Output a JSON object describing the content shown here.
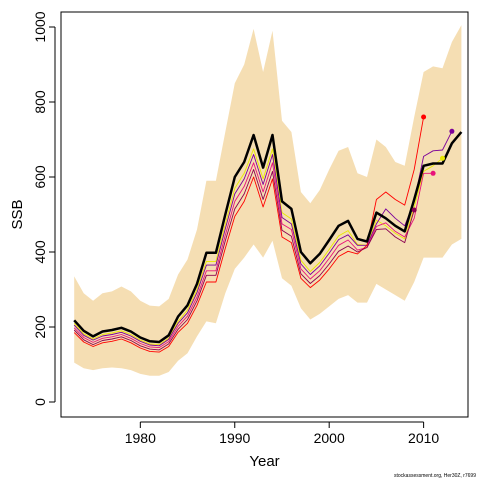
{
  "chart_data": {
    "type": "line",
    "xlabel": "Year",
    "ylabel": "SSB",
    "xlim": [
      1971.6,
      2014.7
    ],
    "ylim": [
      -40,
      1040
    ],
    "x_ticks": [
      1980,
      1990,
      2000,
      2010
    ],
    "y_ticks": [
      0,
      200,
      400,
      600,
      800,
      1000
    ],
    "grid": false,
    "credit": "stockassessment.org, Her30Z, r7699",
    "band": {
      "color": "#f5deb3",
      "x": [
        1973,
        1974,
        1975,
        1976,
        1977,
        1978,
        1979,
        1980,
        1981,
        1982,
        1983,
        1984,
        1985,
        1986,
        1987,
        1988,
        1989,
        1990,
        1991,
        1992,
        1993,
        1994,
        1995,
        1996,
        1997,
        1998,
        1999,
        2000,
        2001,
        2002,
        2003,
        2004,
        2005,
        2006,
        2007,
        2008,
        2009,
        2010,
        2011,
        2012,
        2013,
        2014
      ],
      "upper": [
        335,
        290,
        270,
        290,
        295,
        308,
        295,
        270,
        257,
        255,
        275,
        340,
        380,
        460,
        590,
        590,
        720,
        850,
        900,
        995,
        880,
        990,
        750,
        720,
        560,
        530,
        565,
        620,
        670,
        680,
        610,
        600,
        700,
        680,
        640,
        630,
        760,
        880,
        895,
        890,
        960,
        1005
      ],
      "lower": [
        105,
        90,
        85,
        90,
        92,
        90,
        85,
        75,
        70,
        70,
        80,
        110,
        130,
        175,
        215,
        210,
        290,
        355,
        385,
        420,
        385,
        430,
        330,
        310,
        250,
        220,
        235,
        255,
        275,
        285,
        265,
        265,
        315,
        300,
        285,
        270,
        320,
        385,
        385,
        385,
        420,
        435
      ]
    },
    "series": [
      {
        "color": "#000000",
        "x": [
          1973,
          1974,
          1975,
          1976,
          1977,
          1978,
          1979,
          1980,
          1981,
          1982,
          1983,
          1984,
          1985,
          1986,
          1987,
          1988,
          1989,
          1990,
          1991,
          1992,
          1993,
          1994,
          1995,
          1996,
          1997,
          1998,
          1999,
          2000,
          2001,
          2002,
          2003,
          2004,
          2005,
          2006,
          2007,
          2008,
          2009,
          2010,
          2011,
          2012,
          2013,
          2014
        ],
        "values": [
          218,
          190,
          175,
          188,
          192,
          198,
          188,
          172,
          162,
          160,
          178,
          228,
          258,
          315,
          398,
          398,
          500,
          600,
          640,
          712,
          625,
          712,
          535,
          515,
          400,
          370,
          395,
          432,
          470,
          483,
          435,
          428,
          505,
          490,
          470,
          455,
          540,
          630,
          636,
          636,
          690,
          720
        ]
      },
      {
        "color": "#e8e800",
        "x": [
          1973,
          1974,
          1975,
          1976,
          1977,
          1978,
          1979,
          1980,
          1981,
          1982,
          1983,
          1984,
          1985,
          1986,
          1987,
          1988,
          1989,
          1990,
          1991,
          1992,
          1993,
          1994,
          1995,
          1996,
          1997,
          1998,
          1999,
          2000,
          2001,
          2002,
          2003,
          2004,
          2005,
          2006,
          2007,
          2008,
          2009,
          2010,
          2011,
          2012
        ],
        "values": [
          210,
          182,
          168,
          180,
          184,
          190,
          180,
          165,
          155,
          153,
          170,
          215,
          245,
          300,
          375,
          375,
          475,
          570,
          610,
          675,
          595,
          675,
          505,
          488,
          378,
          348,
          372,
          407,
          443,
          457,
          420,
          418,
          485,
          470,
          450,
          435,
          520,
          615,
          630,
          650
        ]
      },
      {
        "color": "#7b0099",
        "x": [
          1973,
          1974,
          1975,
          1976,
          1977,
          1978,
          1979,
          1980,
          1981,
          1982,
          1983,
          1984,
          1985,
          1986,
          1987,
          1988,
          1989,
          1990,
          1991,
          1992,
          1993,
          1994,
          1995,
          1996,
          1997,
          1998,
          1999,
          2000,
          2001,
          2002,
          2003,
          2004,
          2005,
          2006,
          2007,
          2008,
          2009,
          2010,
          2011,
          2012,
          2013
        ],
        "values": [
          205,
          178,
          165,
          176,
          180,
          186,
          176,
          162,
          152,
          150,
          167,
          210,
          238,
          292,
          365,
          365,
          462,
          555,
          595,
          660,
          580,
          660,
          492,
          475,
          368,
          340,
          363,
          397,
          433,
          446,
          418,
          418,
          475,
          515,
          490,
          470,
          535,
          655,
          670,
          672,
          722
        ]
      },
      {
        "color": "#e8127a",
        "x": [
          1973,
          1974,
          1975,
          1976,
          1977,
          1978,
          1979,
          1980,
          1981,
          1982,
          1983,
          1984,
          1985,
          1986,
          1987,
          1988,
          1989,
          1990,
          1991,
          1992,
          1993,
          1994,
          1995,
          1996,
          1997,
          1998,
          1999,
          2000,
          2001,
          2002,
          2003,
          2004,
          2005,
          2006,
          2007,
          2008,
          2009,
          2010,
          2011
        ],
        "values": [
          198,
          172,
          159,
          170,
          174,
          180,
          170,
          156,
          147,
          145,
          161,
          202,
          229,
          280,
          350,
          350,
          445,
          535,
          575,
          638,
          560,
          638,
          475,
          460,
          355,
          328,
          350,
          383,
          418,
          432,
          405,
          412,
          468,
          478,
          455,
          440,
          490,
          610,
          610
        ]
      },
      {
        "color": "#ff0000",
        "x": [
          1973,
          1974,
          1975,
          1976,
          1977,
          1978,
          1979,
          1980,
          1981,
          1982,
          1983,
          1984,
          1985,
          1986,
          1987,
          1988,
          1989,
          1990,
          1991,
          1992,
          1993,
          1994,
          1995,
          1996,
          1997,
          1998,
          1999,
          2000,
          2001,
          2002,
          2003,
          2004,
          2005,
          2006,
          2007,
          2008,
          2009,
          2010
        ],
        "values": [
          185,
          160,
          148,
          158,
          162,
          168,
          158,
          144,
          135,
          133,
          148,
          186,
          210,
          258,
          320,
          320,
          410,
          495,
          535,
          600,
          520,
          595,
          440,
          425,
          330,
          305,
          325,
          355,
          388,
          402,
          395,
          418,
          540,
          560,
          540,
          525,
          620,
          760
        ]
      },
      {
        "color": "#8b0050",
        "x": [
          1973,
          1974,
          1975,
          1976,
          1977,
          1978,
          1979,
          1980,
          1981,
          1982,
          1983,
          1984,
          1985,
          1986,
          1987,
          1988,
          1989,
          1990,
          1991,
          1992,
          1993,
          1994,
          1995,
          1996,
          1997,
          1998,
          1999,
          2000,
          2001,
          2002,
          2003,
          2004,
          2005,
          2006,
          2007,
          2008,
          2009
        ],
        "values": [
          192,
          166,
          153,
          164,
          168,
          174,
          164,
          150,
          141,
          139,
          155,
          194,
          220,
          270,
          338,
          338,
          430,
          515,
          555,
          620,
          540,
          615,
          458,
          442,
          342,
          316,
          337,
          368,
          402,
          416,
          400,
          412,
          460,
          462,
          440,
          425,
          512
        ]
      }
    ]
  }
}
